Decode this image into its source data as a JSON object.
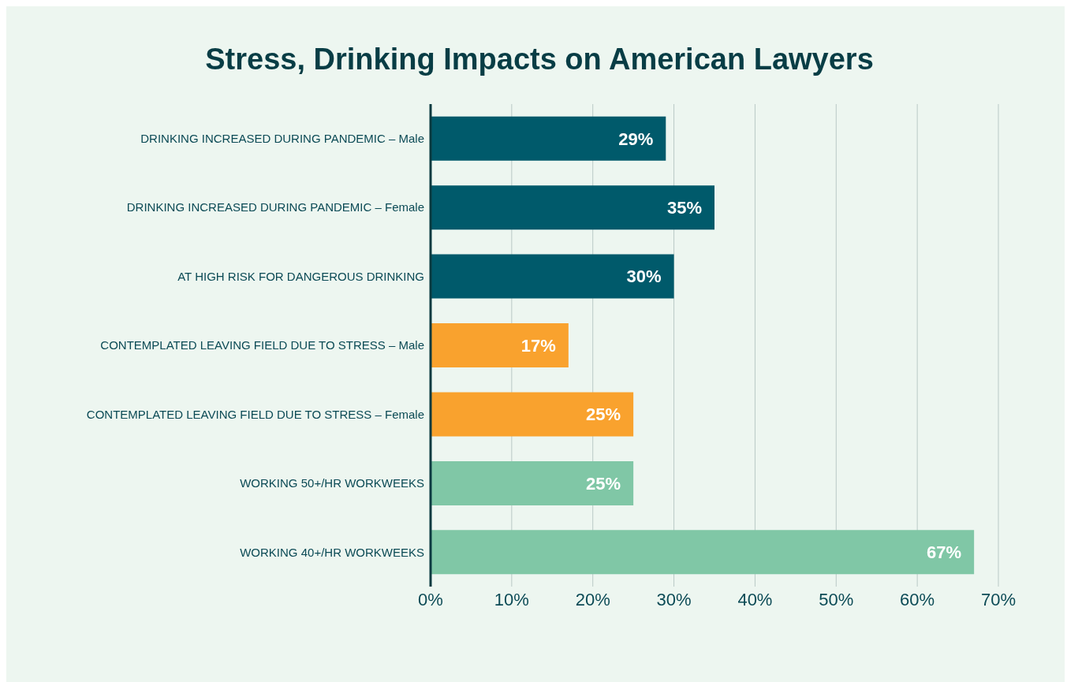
{
  "chart_data": {
    "type": "bar",
    "orientation": "horizontal",
    "title": "Stress, Drinking Impacts on American Lawyers",
    "categories": [
      "DRINKING INCREASED DURING PANDEMIC – Male",
      "DRINKING INCREASED DURING PANDEMIC – Female",
      "AT HIGH RISK FOR DANGEROUS DRINKING",
      "CONTEMPLATED LEAVING FIELD DUE TO STRESS – Male",
      "CONTEMPLATED LEAVING FIELD DUE TO STRESS – Female",
      "WORKING 50+/HR WORKWEEKS",
      "WORKING 40+/HR WORKWEEKS"
    ],
    "values": [
      29,
      35,
      30,
      17,
      25,
      25,
      67
    ],
    "value_labels": [
      "29%",
      "35%",
      "30%",
      "17%",
      "25%",
      "25%",
      "67%"
    ],
    "colors": [
      "#005a6b",
      "#005a6b",
      "#005a6b",
      "#f9a22e",
      "#f9a22e",
      "#80c7a6",
      "#80c7a6"
    ],
    "xlim": [
      0,
      70
    ],
    "xticks": [
      {
        "value": 0,
        "label": "0%"
      },
      {
        "value": 10,
        "label": "10%"
      },
      {
        "value": 20,
        "label": "20%"
      },
      {
        "value": 30,
        "label": "30%"
      },
      {
        "value": 40,
        "label": "40%"
      },
      {
        "value": 50,
        "label": "50%"
      },
      {
        "value": 60,
        "label": "60%"
      },
      {
        "value": 70,
        "label": "70%"
      }
    ],
    "grid": "x"
  }
}
